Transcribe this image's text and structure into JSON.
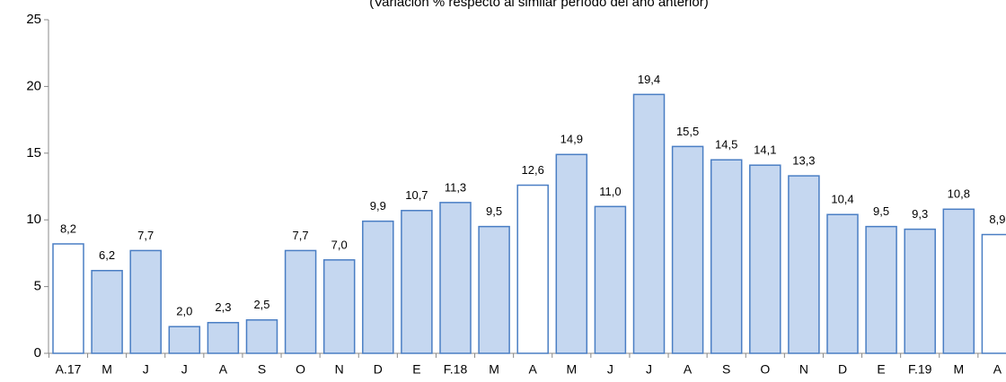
{
  "chart_data": {
    "type": "bar",
    "subtitle": "(Variación % respecto al similar período del año anterior)",
    "categories": [
      "A.17",
      "M",
      "J",
      "J",
      "A",
      "S",
      "O",
      "N",
      "D",
      "E",
      "F.18",
      "M",
      "A",
      "M",
      "J",
      "J",
      "A",
      "S",
      "O",
      "N",
      "D",
      "E",
      "F.19",
      "M",
      "A"
    ],
    "values": [
      8.2,
      6.2,
      7.7,
      2.0,
      2.3,
      2.5,
      7.7,
      7.0,
      9.9,
      10.7,
      11.3,
      9.5,
      12.6,
      14.9,
      11.0,
      19.4,
      15.5,
      14.5,
      14.1,
      13.3,
      10.4,
      9.5,
      9.3,
      10.8,
      8.9
    ],
    "value_labels": [
      "8,2",
      "6,2",
      "7,7",
      "2,0",
      "2,3",
      "2,5",
      "7,7",
      "7,0",
      "9,9",
      "10,7",
      "11,3",
      "9,5",
      "12,6",
      "14,9",
      "11,0",
      "19,4",
      "15,5",
      "14,5",
      "14,1",
      "13,3",
      "10,4",
      "9,5",
      "9,3",
      "10,8",
      "8,9"
    ],
    "colors": [
      "#ffffff",
      "#c5d7f0",
      "#c5d7f0",
      "#c5d7f0",
      "#c5d7f0",
      "#c5d7f0",
      "#c5d7f0",
      "#c5d7f0",
      "#c5d7f0",
      "#c5d7f0",
      "#c5d7f0",
      "#c5d7f0",
      "#ffffff",
      "#c5d7f0",
      "#c5d7f0",
      "#c5d7f0",
      "#c5d7f0",
      "#c5d7f0",
      "#c5d7f0",
      "#c5d7f0",
      "#c5d7f0",
      "#c5d7f0",
      "#c5d7f0",
      "#c5d7f0",
      "#ffffff"
    ],
    "edge_color": "#4a7ec4",
    "ylim": [
      0,
      25
    ],
    "yticks": [
      0,
      5,
      10,
      15,
      20,
      25
    ]
  }
}
